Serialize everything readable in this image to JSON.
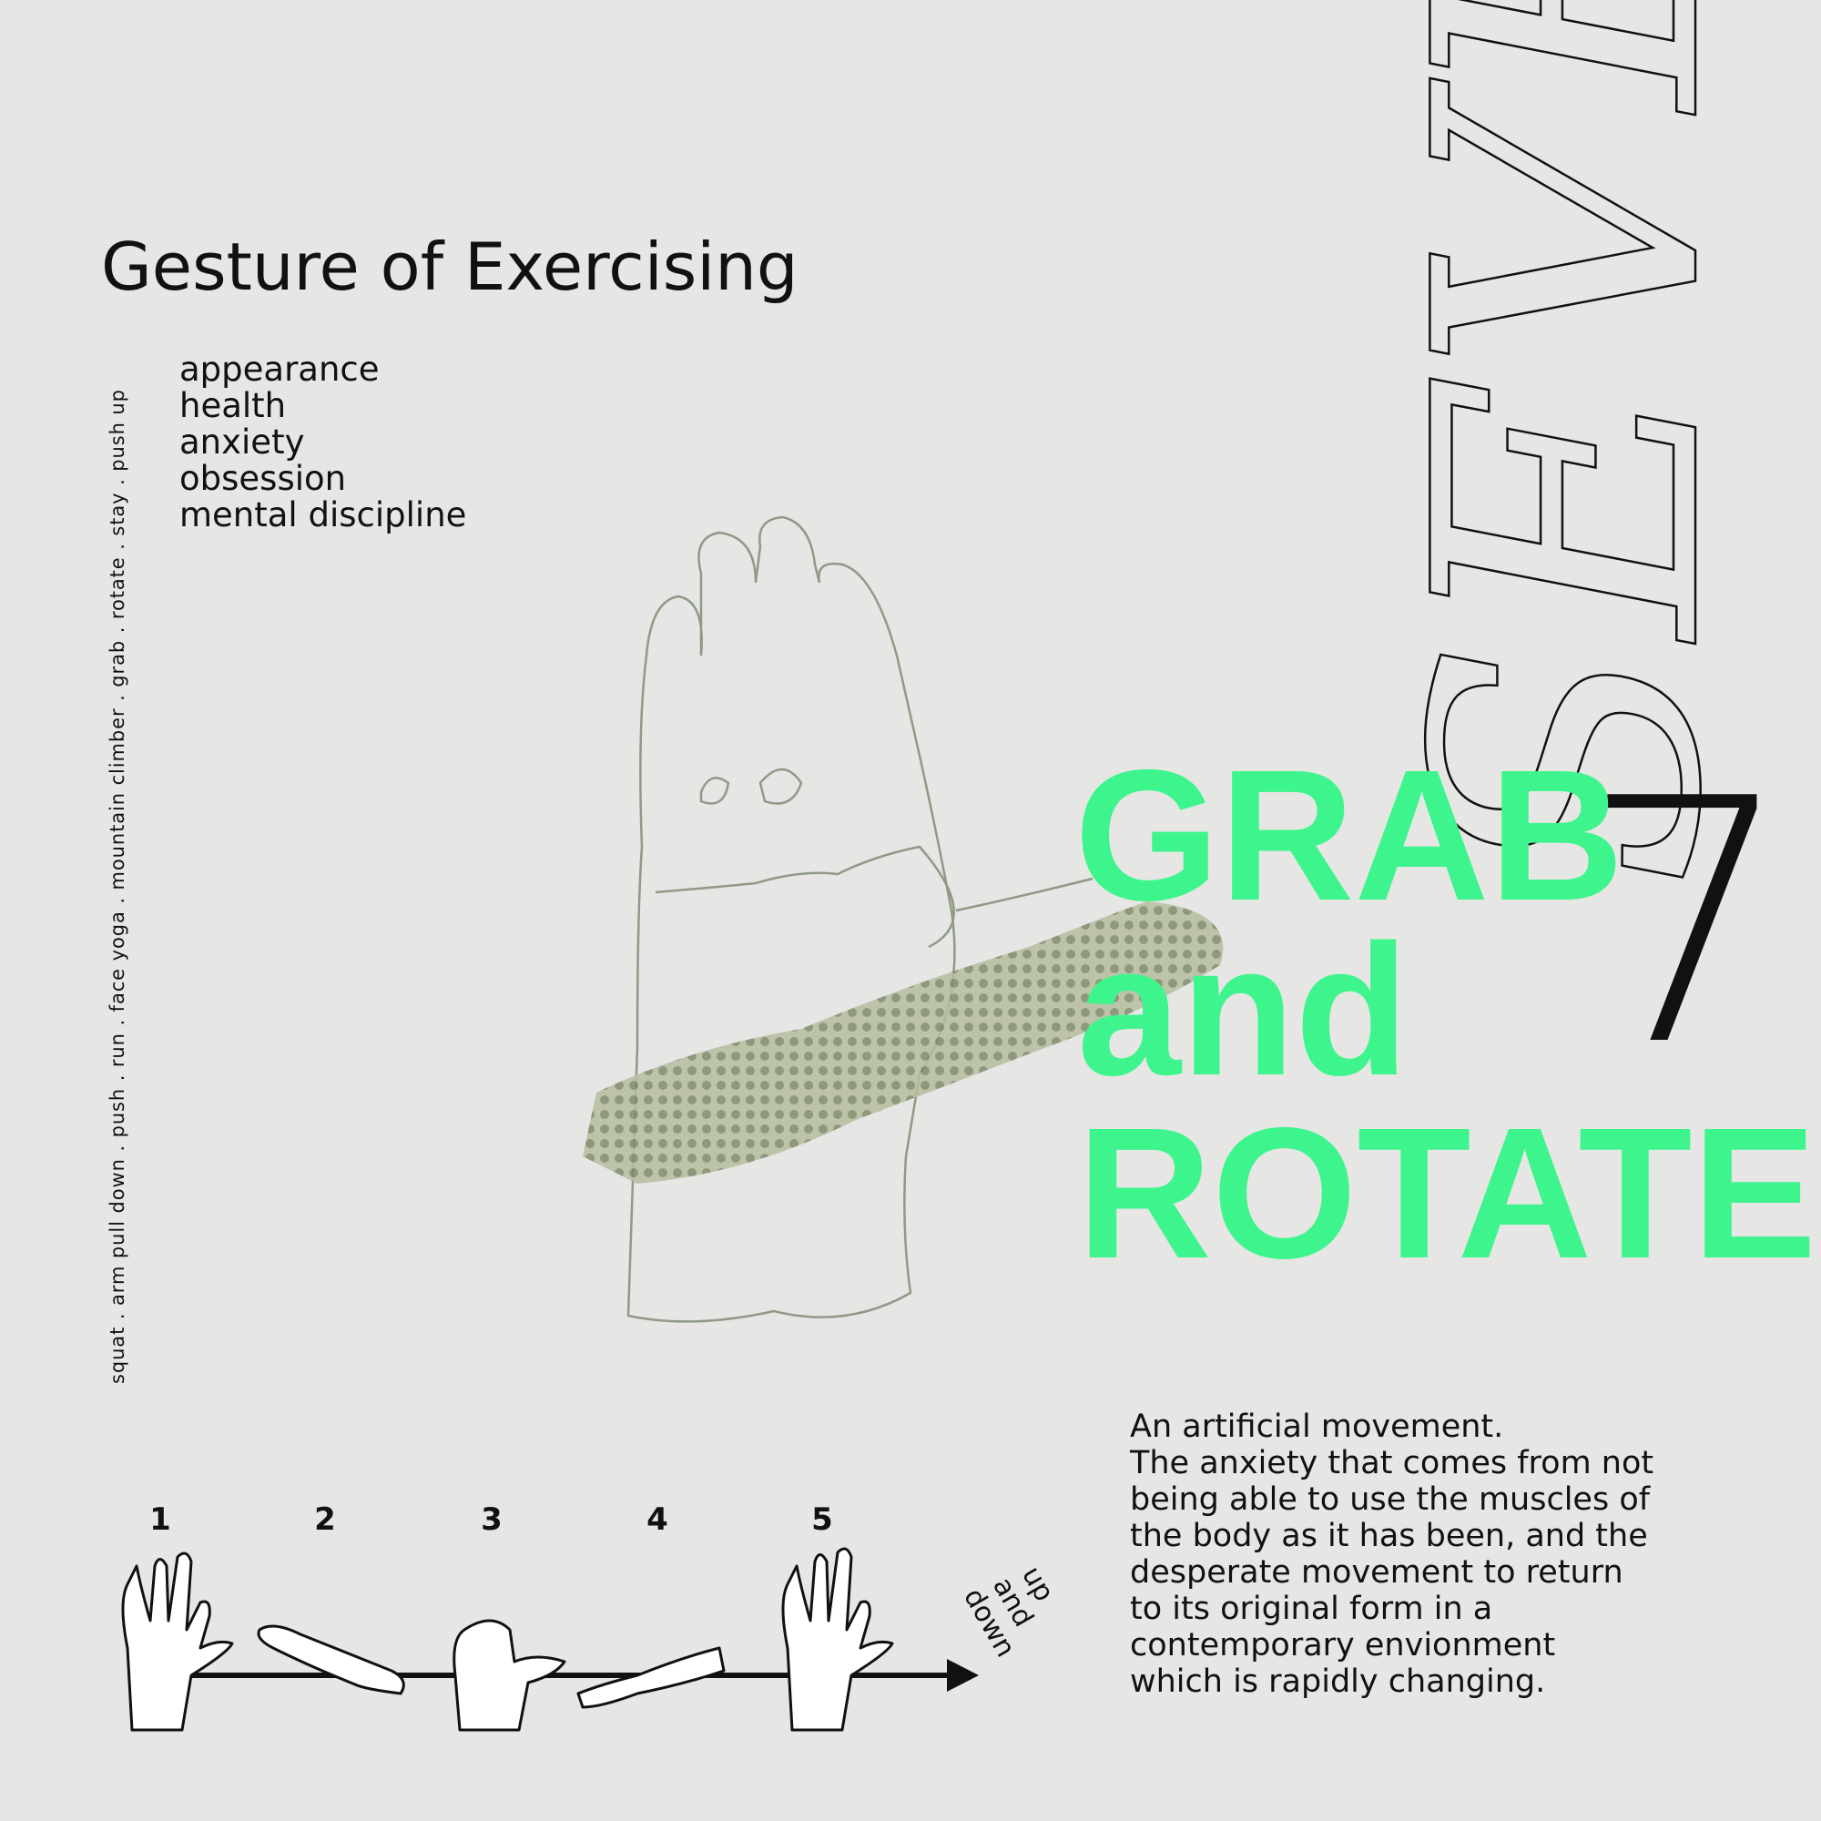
{
  "title": "Gesture of Exercising",
  "keywords": [
    "appearance",
    "health",
    "anxiety",
    "obsession",
    "mental discipline"
  ],
  "exercise_list": "squat . arm pull down . push . run . face yoga . mountain climber . grab . rotate . stay . push up",
  "outline_word": "SEVEN",
  "number": "7",
  "headline": [
    "GRAB",
    "and",
    "ROTATE"
  ],
  "description": [
    "An artificial movement.",
    "The anxiety that comes from not",
    "being able to use the muscles of",
    "the body as it has been, and the",
    "desperate movement to return",
    "to its original form in a",
    "contemporary envionment",
    "which is rapidly changing."
  ],
  "steps": [
    "1",
    "2",
    "3",
    "4",
    "5"
  ],
  "arrow_label": [
    "up",
    "and",
    "down"
  ]
}
